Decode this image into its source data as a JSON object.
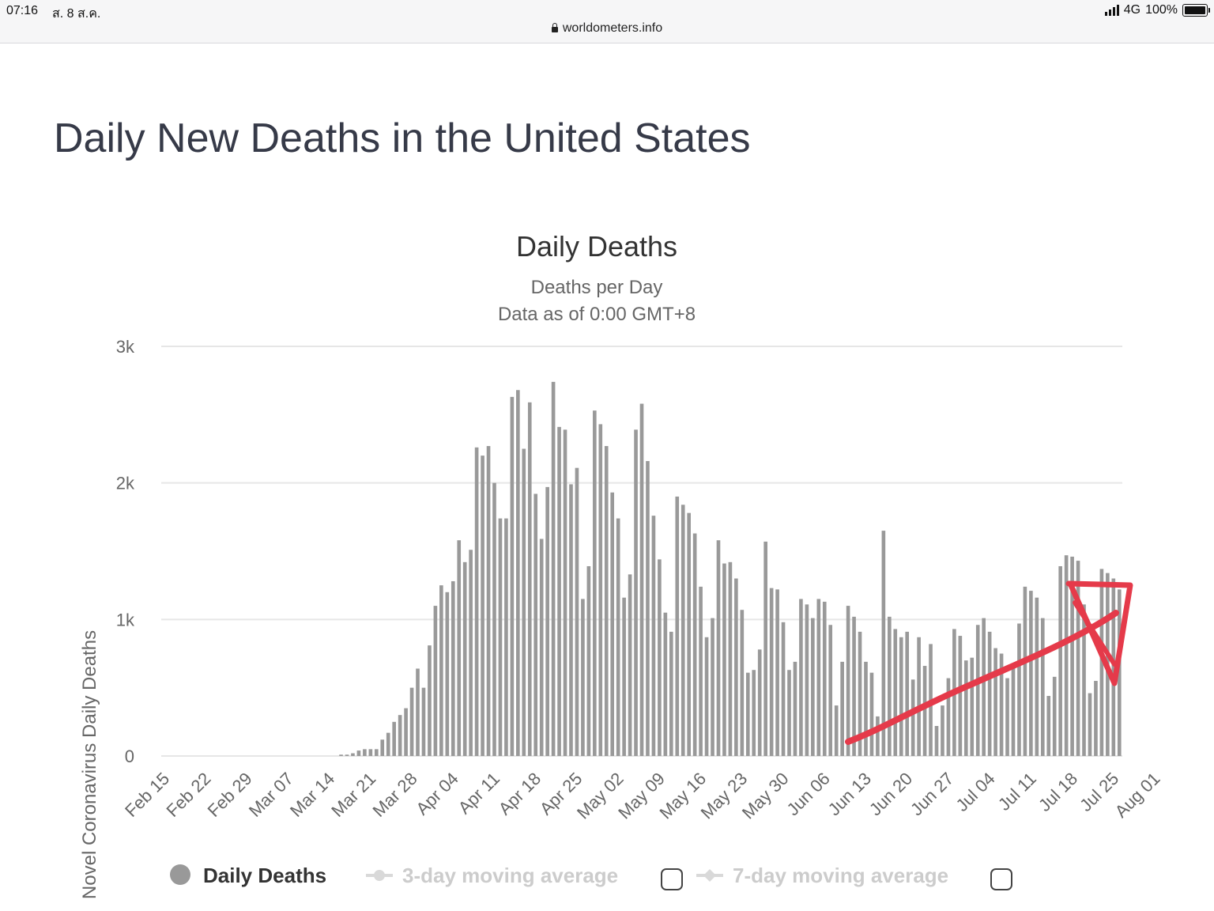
{
  "status_bar": {
    "time": "07:16",
    "date": "ส. 8 ส.ค.",
    "network": "4G",
    "battery": "100%"
  },
  "browser": {
    "url": "worldometers.info"
  },
  "page": {
    "title": "Daily New Deaths in the United States"
  },
  "chart_data": {
    "type": "bar",
    "title": "Daily Deaths",
    "subtitle": [
      "Deaths per Day",
      "Data as of 0:00 GMT+8"
    ],
    "ylabel": "Novel Coronavirus Daily Deaths",
    "xlabel": "",
    "ylim": [
      0,
      3000
    ],
    "yticks": [
      0,
      1000,
      2000,
      3000
    ],
    "ytick_labels": [
      "0",
      "1k",
      "2k",
      "3k"
    ],
    "grid": true,
    "bar_color": "#999999",
    "annotation_color": "#e53a4a",
    "x_tick_labels": [
      "Feb 15",
      "Feb 22",
      "Feb 29",
      "Mar 07",
      "Mar 14",
      "Mar 21",
      "Mar 28",
      "Apr 04",
      "Apr 11",
      "Apr 18",
      "Apr 25",
      "May 02",
      "May 09",
      "May 16",
      "May 23",
      "May 30",
      "Jun 06",
      "Jun 13",
      "Jun 20",
      "Jun 27",
      "Jul 04",
      "Jul 11",
      "Jul 18",
      "Jul 25",
      "Aug 01"
    ],
    "start_date": "Feb 15",
    "values": [
      0,
      0,
      0,
      0,
      0,
      0,
      0,
      0,
      0,
      0,
      0,
      0,
      0,
      0,
      0,
      0,
      0,
      0,
      0,
      0,
      0,
      0,
      0,
      0,
      0,
      0,
      0,
      0,
      0,
      0,
      10,
      10,
      20,
      40,
      50,
      50,
      50,
      120,
      170,
      250,
      300,
      350,
      500,
      640,
      500,
      810,
      1100,
      1250,
      1200,
      1280,
      1580,
      1420,
      1510,
      2260,
      2200,
      2270,
      2000,
      1740,
      1740,
      2630,
      2680,
      2250,
      2590,
      1920,
      1590,
      1970,
      2740,
      2410,
      2390,
      1990,
      2110,
      1150,
      1390,
      2530,
      2430,
      2270,
      1930,
      1740,
      1160,
      1330,
      2390,
      2580,
      2160,
      1760,
      1440,
      1050,
      910,
      1900,
      1840,
      1780,
      1630,
      1240,
      870,
      1010,
      1580,
      1410,
      1420,
      1300,
      1070,
      610,
      630,
      780,
      1570,
      1230,
      1220,
      980,
      630,
      690,
      1150,
      1110,
      1010,
      1150,
      1130,
      960,
      370,
      690,
      1100,
      1020,
      910,
      690,
      610,
      290,
      1650,
      1020,
      930,
      870,
      910,
      560,
      870,
      660,
      820,
      220,
      370,
      570,
      930,
      880,
      700,
      720,
      960,
      1010,
      910,
      790,
      750,
      570,
      680,
      970,
      1240,
      1210,
      1160,
      1010,
      440,
      580,
      1390,
      1470,
      1460,
      1430,
      1110,
      460,
      550,
      1370,
      1340,
      1300,
      1220
    ]
  },
  "legend": {
    "daily_deaths": "Daily Deaths",
    "avg3": "3-day moving average",
    "avg7": "7-day moving average"
  }
}
